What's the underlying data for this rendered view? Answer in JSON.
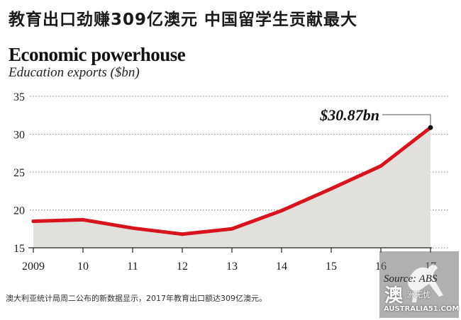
{
  "headline": "教育出口劲赚309亿澳元 中国留学生贡献最大",
  "caption": "澳大利亚统计局周二公布的新数据显示，2017年教育出口额达309亿澳元。",
  "chart_data": {
    "type": "area",
    "title": "Economic powerhouse",
    "subtitle": "Education exports ($bn)",
    "x": [
      "2009",
      "10",
      "11",
      "12",
      "13",
      "14",
      "15",
      "16",
      "17"
    ],
    "values": [
      18.5,
      18.7,
      17.6,
      16.8,
      17.5,
      19.9,
      22.8,
      25.8,
      30.87
    ],
    "ylim": [
      15,
      35
    ],
    "yticks": [
      "15",
      "20",
      "25",
      "30",
      "35"
    ],
    "annotation": "$30.87bn",
    "source": "Source: ABS",
    "grid": "dotted-horizontal",
    "colors": {
      "line": "#d7141d",
      "fill": "#e2e0dc",
      "grid": "#888888",
      "text": "#1a1a1a"
    }
  },
  "watermark": {
    "glyph": "澳",
    "text": "洲无忧",
    "url": "AUSTRALIA51.COM"
  }
}
